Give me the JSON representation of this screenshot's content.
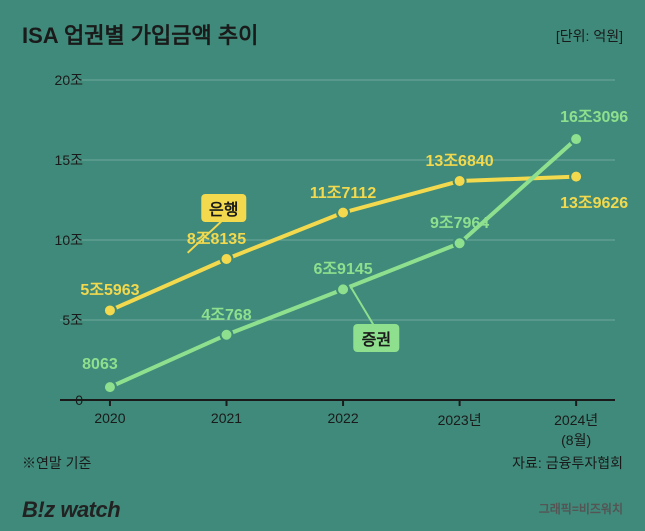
{
  "title": "ISA 업권별 가입금액 추이",
  "unit_label": "[단위: 억원]",
  "footnote": "※연말 기준",
  "source": "자료: 금융투자협회",
  "credit": "그래픽=비즈워치",
  "logo_text": "B!z watch",
  "chart": {
    "type": "line",
    "background_color": "#3f8a7a",
    "axis_color": "#1a1a1a",
    "grid_color": "#6fa89b",
    "title_fontsize": 22,
    "title_color": "#1a1a1a",
    "unit_fontsize": 14,
    "unit_color": "#1a1a1a",
    "ylim": [
      0,
      20
    ],
    "yticks": [
      0,
      5,
      10,
      15,
      20
    ],
    "ytick_labels": [
      "0",
      "5조",
      "10조",
      "15조",
      "20조"
    ],
    "ytick_fontsize": 14,
    "ytick_color": "#1a1a1a",
    "x_labels": [
      "2020",
      "2021",
      "2022",
      "2023년",
      "2024년\n(8월)"
    ],
    "xtick_fontsize": 14,
    "xtick_color": "#1a1a1a",
    "series": [
      {
        "name": "은행",
        "color": "#f2d94e",
        "line_width": 4,
        "marker_radius": 6,
        "label_color": "#f2d94e",
        "label_fontsize": 16,
        "tag_bg": "#f2d94e",
        "tag_text_color": "#1a1a1a",
        "tag_fontsize": 16,
        "tag_pos": {
          "x_frac": 0.295,
          "y_val": 12.0
        },
        "leaders": [
          {
            "x1_frac": 0.295,
            "y1_val": 11.3,
            "x2_frac": 0.23,
            "y2_val": 9.2
          }
        ],
        "points": [
          {
            "x_frac": 0.09,
            "y_val": 5.5963,
            "label": "5조5963",
            "label_dx": 0,
            "label_dy": -22
          },
          {
            "x_frac": 0.3,
            "y_val": 8.8135,
            "label": "8조8135",
            "label_dx": -10,
            "label_dy": -22
          },
          {
            "x_frac": 0.51,
            "y_val": 11.7112,
            "label": "11조7112",
            "label_dx": 0,
            "label_dy": -22
          },
          {
            "x_frac": 0.72,
            "y_val": 13.684,
            "label": "13조6840",
            "label_dx": 0,
            "label_dy": -22
          },
          {
            "x_frac": 0.93,
            "y_val": 13.9626,
            "label": "13조9626",
            "label_dx": 18,
            "label_dy": 24
          }
        ]
      },
      {
        "name": "증권",
        "color": "#8ee08e",
        "line_width": 4,
        "marker_radius": 6,
        "label_color": "#8ee08e",
        "label_fontsize": 16,
        "tag_bg": "#8ee08e",
        "tag_text_color": "#1a1a1a",
        "tag_fontsize": 16,
        "tag_pos": {
          "x_frac": 0.57,
          "y_val": 3.9
        },
        "leaders": [
          {
            "x1_frac": 0.57,
            "y1_val": 4.4,
            "x2_frac": 0.525,
            "y2_val": 7.0
          }
        ],
        "points": [
          {
            "x_frac": 0.09,
            "y_val": 0.8063,
            "label": "8063",
            "label_dx": -10,
            "label_dy": -22
          },
          {
            "x_frac": 0.3,
            "y_val": 4.0768,
            "label": "4조768",
            "label_dx": 0,
            "label_dy": -22
          },
          {
            "x_frac": 0.51,
            "y_val": 6.9145,
            "label": "6조9145",
            "label_dx": 0,
            "label_dy": -22
          },
          {
            "x_frac": 0.72,
            "y_val": 9.7964,
            "label": "9조7964",
            "label_dx": 0,
            "label_dy": -22
          },
          {
            "x_frac": 0.93,
            "y_val": 16.3096,
            "label": "16조3096",
            "label_dx": 18,
            "label_dy": -24
          }
        ]
      }
    ],
    "footer_fontsize": 14,
    "footer_color": "#1a1a1a",
    "credit_fontsize": 12,
    "credit_color": "#555",
    "logo_fontsize": 22,
    "logo_color": "#222"
  }
}
